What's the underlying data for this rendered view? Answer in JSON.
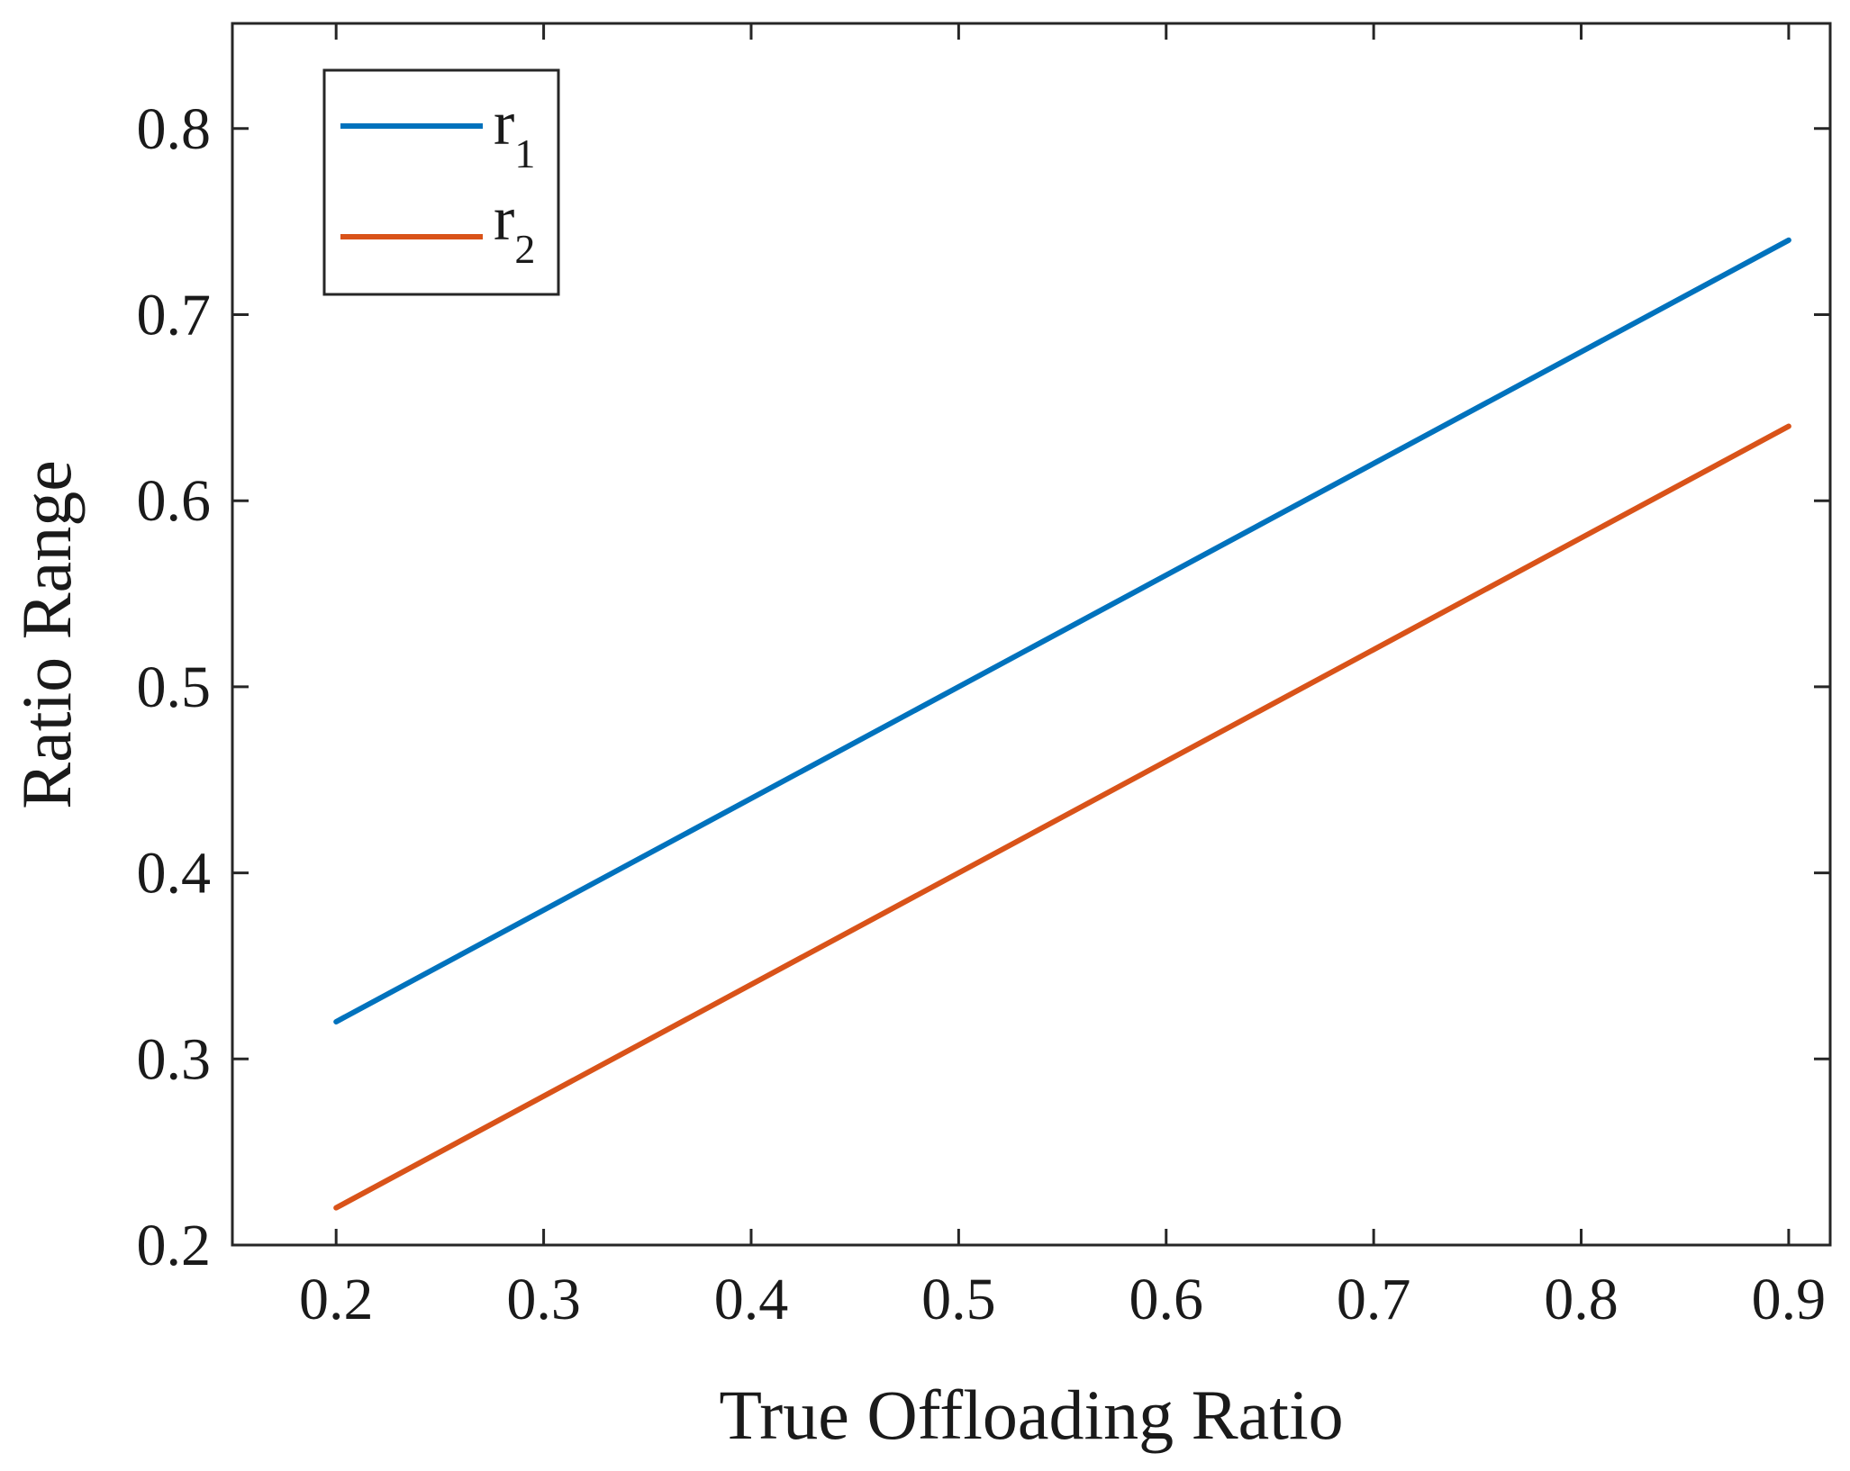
{
  "chart_data": {
    "type": "line",
    "title": "",
    "xlabel": "True Offloading Ratio",
    "ylabel": "Ratio Range",
    "xlim": [
      0.15,
      0.92
    ],
    "ylim": [
      0.2,
      0.8565
    ],
    "xticks": [
      0.2,
      0.3,
      0.4,
      0.5,
      0.6,
      0.7,
      0.8,
      0.9
    ],
    "yticks": [
      0.2,
      0.3,
      0.4,
      0.5,
      0.6,
      0.7,
      0.8
    ],
    "xtick_labels": [
      "0.2",
      "0.3",
      "0.4",
      "0.5",
      "0.6",
      "0.7",
      "0.8",
      "0.9"
    ],
    "ytick_labels": [
      "0.2",
      "0.3",
      "0.4",
      "0.5",
      "0.6",
      "0.7",
      "0.8"
    ],
    "grid": false,
    "legend_position": "top-left",
    "series": [
      {
        "name": "r1",
        "label_base": "r",
        "label_sub": "1",
        "color": "#0072BD",
        "x": [
          0.2,
          0.9
        ],
        "y": [
          0.32,
          0.74
        ]
      },
      {
        "name": "r2",
        "label_base": "r",
        "label_sub": "2",
        "color": "#D95319",
        "x": [
          0.2,
          0.9
        ],
        "y": [
          0.22,
          0.64
        ]
      }
    ]
  }
}
